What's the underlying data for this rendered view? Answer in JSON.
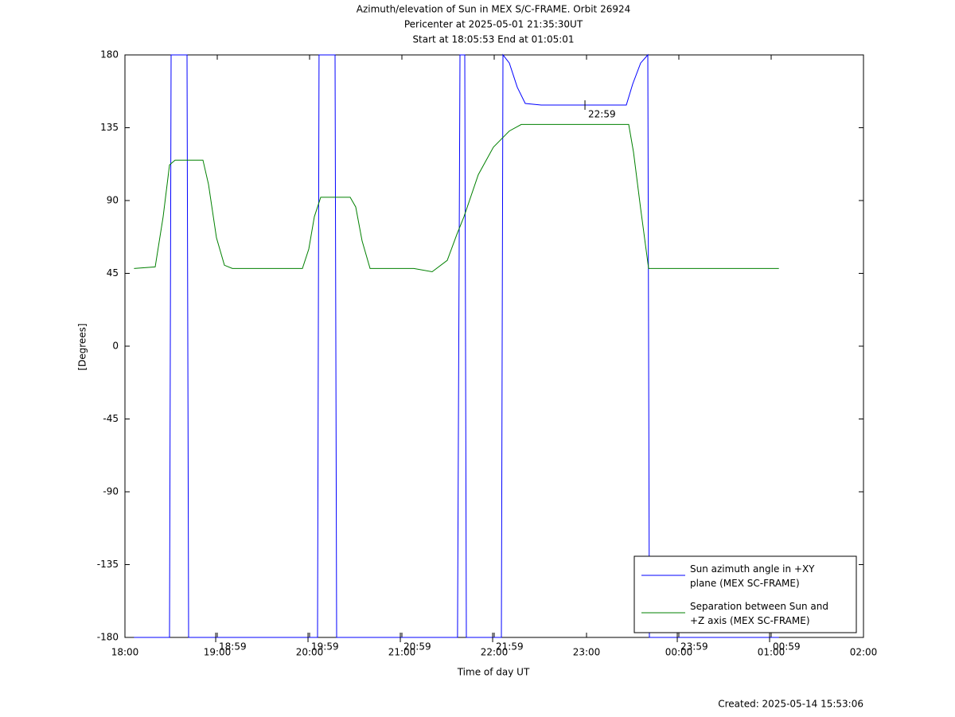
{
  "chart_data": {
    "type": "line",
    "title": "Azimuth/elevation of Sun in MEX S/C-FRAME.  Orbit 26924",
    "subtitle": [
      "Pericenter at 2025-05-01 21:35:30UT",
      "Start at 18:05:53 End at 01:05:01"
    ],
    "x_label": "Time of day UT",
    "y_label": "[Degrees]",
    "footer": "Created: 2025-05-14 15:53:06",
    "xlim": [
      18,
      26
    ],
    "xticks": [
      {
        "value": 18,
        "label": "18:00"
      },
      {
        "value": 19,
        "label": "19:00"
      },
      {
        "value": 20,
        "label": "20:00"
      },
      {
        "value": 21,
        "label": "21:00"
      },
      {
        "value": 22,
        "label": "22:00"
      },
      {
        "value": 23,
        "label": "23:00"
      },
      {
        "value": 24,
        "label": "00:00"
      },
      {
        "value": 25,
        "label": "01:00"
      },
      {
        "value": 26,
        "label": "02:00"
      }
    ],
    "ylim": [
      -180,
      180
    ],
    "yticks": [
      -180,
      -135,
      -90,
      -45,
      0,
      45,
      90,
      135,
      180
    ],
    "legend": "bottom-right",
    "series": [
      {
        "name": "Sun azimuth angle in +XY plane (MEX SC-FRAME)",
        "color": "#0000ff",
        "x": [
          18.098,
          18.483,
          18.5,
          18.672,
          18.69,
          20.086,
          20.103,
          20.276,
          20.293,
          21.603,
          21.629,
          21.681,
          21.698,
          22.078,
          22.095,
          22.164,
          22.25,
          22.336,
          22.509,
          23.431,
          23.5,
          23.586,
          23.664,
          23.681,
          25.084
        ],
        "values": [
          -180,
          -180,
          180,
          180,
          -180,
          -180,
          180,
          180,
          -180,
          -180,
          180,
          180,
          -180,
          -180,
          180,
          175,
          160,
          150,
          149,
          149,
          162,
          175,
          180,
          -180,
          -180
        ]
      },
      {
        "name": "Separation between Sun and +Z axis (MEX SC-FRAME)",
        "color": "#008000",
        "x": [
          18.098,
          18.328,
          18.414,
          18.483,
          18.543,
          18.845,
          18.905,
          18.991,
          19.078,
          19.164,
          19.922,
          19.991,
          20.052,
          20.121,
          20.44,
          20.5,
          20.569,
          20.655,
          21.129,
          21.328,
          21.491,
          21.595,
          21.672,
          21.828,
          21.991,
          22.164,
          22.293,
          23.457,
          23.509,
          23.586,
          23.672,
          25.084
        ],
        "values": [
          48,
          49,
          80,
          112,
          115,
          115,
          100,
          67,
          50,
          48,
          48,
          60,
          80,
          92,
          92,
          86,
          65,
          48,
          48,
          46,
          53,
          69,
          80,
          106,
          123,
          133,
          137,
          137,
          120,
          85,
          48,
          48
        ]
      }
    ],
    "annotations": [
      {
        "x": 18.983,
        "y": -180,
        "text": "18:59"
      },
      {
        "x": 19.983,
        "y": -180,
        "text": "19:59"
      },
      {
        "x": 20.983,
        "y": -180,
        "text": "20:59"
      },
      {
        "x": 21.983,
        "y": -180,
        "text": "21:59"
      },
      {
        "x": 22.983,
        "y": 149,
        "text": "22:59"
      },
      {
        "x": 23.983,
        "y": -180,
        "text": "23:59"
      },
      {
        "x": 24.983,
        "y": -180,
        "text": "00:59"
      }
    ]
  }
}
